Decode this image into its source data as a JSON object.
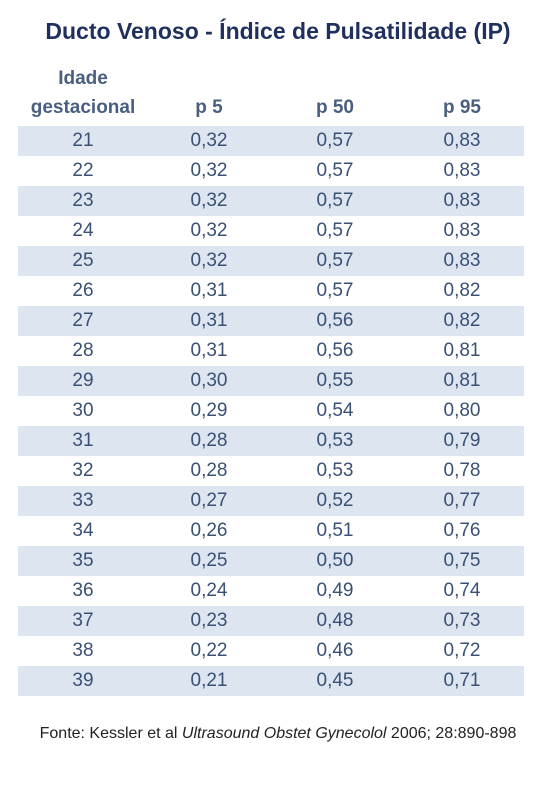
{
  "title": "Ducto Venoso - Índice de Pulsatilidade (IP)",
  "table": {
    "headers": {
      "age_line1": "Idade",
      "age_line2": "gestacional",
      "p5": "p 5",
      "p50": "p 50",
      "p95": "p 95"
    },
    "rows": [
      {
        "age": "21",
        "p5": "0,32",
        "p50": "0,57",
        "p95": "0,83"
      },
      {
        "age": "22",
        "p5": "0,32",
        "p50": "0,57",
        "p95": "0,83"
      },
      {
        "age": "23",
        "p5": "0,32",
        "p50": "0,57",
        "p95": "0,83"
      },
      {
        "age": "24",
        "p5": "0,32",
        "p50": "0,57",
        "p95": "0,83"
      },
      {
        "age": "25",
        "p5": "0,32",
        "p50": "0,57",
        "p95": "0,83"
      },
      {
        "age": "26",
        "p5": "0,31",
        "p50": "0,57",
        "p95": "0,82"
      },
      {
        "age": "27",
        "p5": "0,31",
        "p50": "0,56",
        "p95": "0,82"
      },
      {
        "age": "28",
        "p5": "0,31",
        "p50": "0,56",
        "p95": "0,81"
      },
      {
        "age": "29",
        "p5": "0,30",
        "p50": "0,55",
        "p95": "0,81"
      },
      {
        "age": "30",
        "p5": "0,29",
        "p50": "0,54",
        "p95": "0,80"
      },
      {
        "age": "31",
        "p5": "0,28",
        "p50": "0,53",
        "p95": "0,79"
      },
      {
        "age": "32",
        "p5": "0,28",
        "p50": "0,53",
        "p95": "0,78"
      },
      {
        "age": "33",
        "p5": "0,27",
        "p50": "0,52",
        "p95": "0,77"
      },
      {
        "age": "34",
        "p5": "0,26",
        "p50": "0,51",
        "p95": "0,76"
      },
      {
        "age": "35",
        "p5": "0,25",
        "p50": "0,50",
        "p95": "0,75"
      },
      {
        "age": "36",
        "p5": "0,24",
        "p50": "0,49",
        "p95": "0,74"
      },
      {
        "age": "37",
        "p5": "0,23",
        "p50": "0,48",
        "p95": "0,73"
      },
      {
        "age": "38",
        "p5": "0,22",
        "p50": "0,46",
        "p95": "0,72"
      },
      {
        "age": "39",
        "p5": "0,21",
        "p50": "0,45",
        "p95": "0,71"
      }
    ]
  },
  "footnote": {
    "prefix": "Fonte: Kessler et al ",
    "journal": "Ultrasound Obstet Gynecolol",
    "suffix": "  2006; 28:890-898"
  },
  "colors": {
    "title": "#1f2f5e",
    "header": "#4a5f80",
    "cell_text": "#3b5075",
    "row_shade": "#dce5f0"
  }
}
